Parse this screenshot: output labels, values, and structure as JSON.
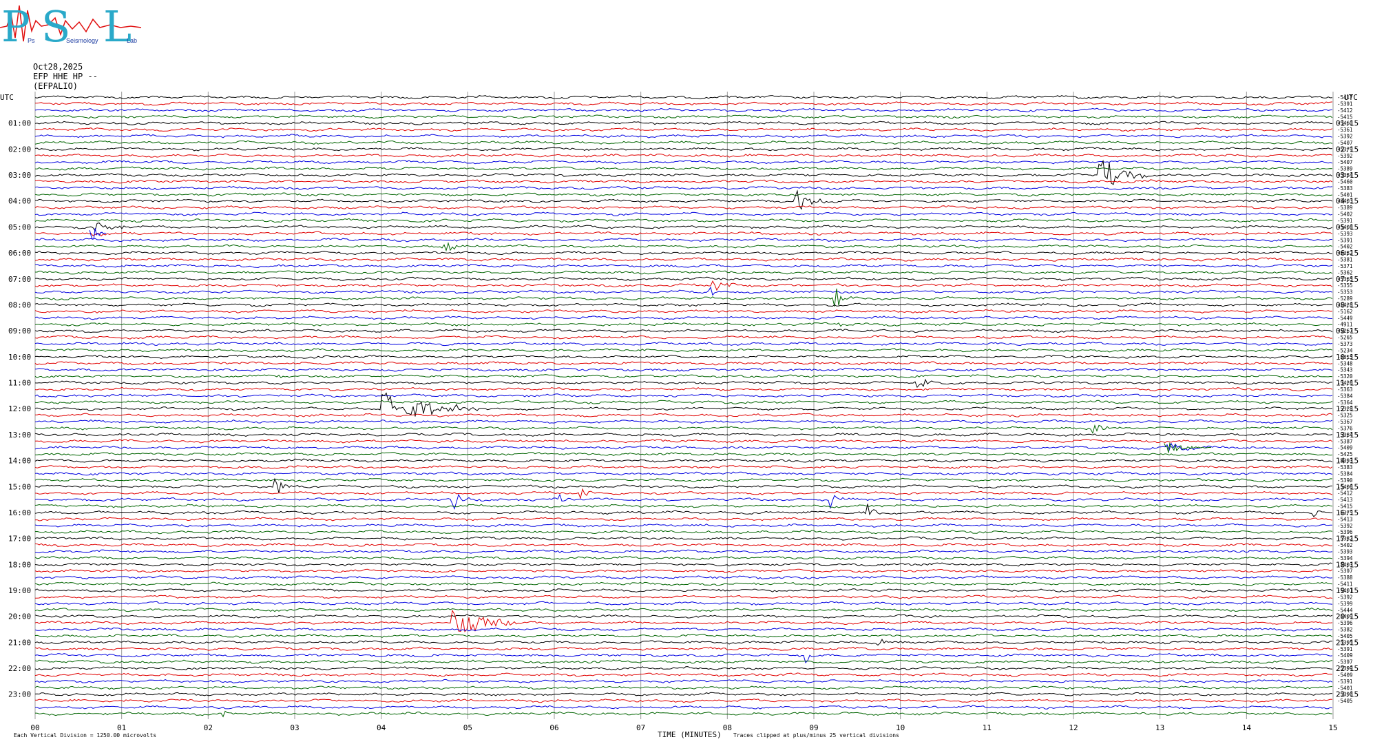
{
  "logo": {
    "big_letters": [
      "P",
      "S",
      "L"
    ],
    "small_words": [
      "Ps",
      "Seismology",
      "Lab"
    ],
    "colors": {
      "letters": "#2aa9c9",
      "wave": "#e01010",
      "small_text": "#1a3aa0"
    }
  },
  "header": {
    "date": "Oct28,2025",
    "station": "EFP HHE HP --",
    "site": "(EFPALIO)"
  },
  "axes": {
    "left_tz": "UTC",
    "right_tz": "UTC",
    "x_title": "TIME (MINUTES)",
    "x_ticks": [
      "00",
      "01",
      "02",
      "03",
      "04",
      "05",
      "06",
      "07",
      "08",
      "09",
      "10",
      "11",
      "12",
      "13",
      "14",
      "15"
    ],
    "left_hours": [
      "01:00",
      "02:00",
      "03:00",
      "04:00",
      "05:00",
      "06:00",
      "07:00",
      "08:00",
      "09:00",
      "10:00",
      "11:00",
      "12:00",
      "13:00",
      "14:00",
      "15:00",
      "16:00",
      "17:00",
      "18:00",
      "19:00",
      "20:00",
      "21:00",
      "22:00",
      "23:00"
    ],
    "right_hours": [
      "01:15",
      "02:15",
      "03:15",
      "04:15",
      "05:15",
      "06:15",
      "07:15",
      "08:15",
      "09:15",
      "10:15",
      "11:15",
      "12:15",
      "13:15",
      "14:15",
      "15:15",
      "16:15",
      "17:15",
      "18:15",
      "19:15",
      "20:15",
      "21:15",
      "22:15",
      "23:15"
    ]
  },
  "footer": {
    "scale_note": "Each Vertical Division = 1250.00 microvolts",
    "clip_note": "Traces clipped at plus/minus 25 vertical divisions"
  },
  "chart_data": {
    "type": "line",
    "title": "",
    "xlabel": "TIME (MINUTES)",
    "ylabel": "UTC",
    "xlim": [
      0,
      15
    ],
    "rows": 96,
    "minutes_per_row": 15,
    "trace_colors": [
      "#000000",
      "#e00000",
      "#0000e0",
      "#006400"
    ],
    "grid": true,
    "right_offsets": [
      "-5417",
      "-5391",
      "-5412",
      "-5415",
      "-5460",
      "-5361",
      "-5392",
      "-5407",
      "-5379",
      "-5392",
      "-5407",
      "-5389",
      "-5384",
      "-5460",
      "-5383",
      "-5401",
      "-5403",
      "-5389",
      "-5402",
      "-5391",
      "-5408",
      "-5393",
      "-5391",
      "-5402",
      "-5382",
      "-5381",
      "-5371",
      "-5362",
      "-5365",
      "-5355",
      "-5353",
      "-5289",
      "-5428",
      "-5162",
      "-5449",
      "-4911",
      "-5267",
      "-5265",
      "-5373",
      "-5234",
      "-5315",
      "-5348",
      "-5343",
      "-5320",
      "-5426",
      "-5363",
      "-5384",
      "-5364",
      "-5328",
      "-5325",
      "-5367",
      "-5376",
      "-5384",
      "-5387",
      "-5409",
      "-5425",
      "-5393",
      "-5383",
      "-5384",
      "-5390",
      "-5406",
      "-5412",
      "-5413",
      "-5415",
      "-5375",
      "-5413",
      "-5392",
      "-5396",
      "-5382",
      "-5402",
      "-5393",
      "-5394",
      "-5403",
      "-5397",
      "-5388",
      "-5411",
      "-5401",
      "-5392",
      "-5399",
      "-5444",
      "-5409",
      "-5396",
      "-5382",
      "-5405",
      "-5395",
      "-5391",
      "-5409",
      "-5397",
      "-5399",
      "-5409",
      "-5391",
      "-5401",
      "-5396",
      "-5405"
    ],
    "events": [
      {
        "row": 12,
        "minute": 12.3,
        "amp": 30,
        "dur": 0.6,
        "color": "#000000"
      },
      {
        "row": 16,
        "minute": 8.8,
        "amp": 18,
        "dur": 0.5,
        "color": "#000000"
      },
      {
        "row": 20,
        "minute": 0.7,
        "amp": 8,
        "dur": 0.6,
        "color": "#000000"
      },
      {
        "row": 21,
        "minute": 0.68,
        "amp": 10,
        "dur": 0.15,
        "color": "#0000e0"
      },
      {
        "row": 23,
        "minute": 4.75,
        "amp": 12,
        "dur": 0.2,
        "color": "#006400"
      },
      {
        "row": 29,
        "minute": 7.85,
        "amp": 8,
        "dur": 0.4,
        "color": "#e00000"
      },
      {
        "row": 30,
        "minute": 7.8,
        "amp": 10,
        "dur": 0.1,
        "color": "#0000e0"
      },
      {
        "row": 31,
        "minute": 9.25,
        "amp": 20,
        "dur": 0.2,
        "color": "#006400"
      },
      {
        "row": 35,
        "minute": 9.25,
        "amp": 10,
        "dur": 0.1,
        "color": "#006400"
      },
      {
        "row": 43,
        "minute": 2.8,
        "amp": 8,
        "dur": 0.15,
        "color": "#006400"
      },
      {
        "row": 44,
        "minute": 10.2,
        "amp": 14,
        "dur": 0.3,
        "color": "#000000"
      },
      {
        "row": 48,
        "minute": 4.0,
        "amp": 32,
        "dur": 1.2,
        "color": "#000000"
      },
      {
        "row": 51,
        "minute": 12.25,
        "amp": 12,
        "dur": 0.3,
        "color": "#006400"
      },
      {
        "row": 54,
        "minute": 13.1,
        "amp": 8,
        "dur": 0.5,
        "color": "#006400"
      },
      {
        "row": 60,
        "minute": 2.78,
        "amp": 16,
        "dur": 0.3,
        "color": "#000000"
      },
      {
        "row": 61,
        "minute": 6.3,
        "amp": 12,
        "dur": 0.2,
        "color": "#e00000"
      },
      {
        "row": 62,
        "minute": 4.85,
        "amp": 14,
        "dur": 0.2,
        "color": "#0000e0"
      },
      {
        "row": 62,
        "minute": 9.2,
        "amp": 14,
        "dur": 0.2,
        "color": "#0000e0"
      },
      {
        "row": 62,
        "minute": 6.07,
        "amp": 10,
        "dur": 0.15,
        "color": "#0000e0"
      },
      {
        "row": 64,
        "minute": 9.62,
        "amp": 14,
        "dur": 0.2,
        "color": "#000000"
      },
      {
        "row": 64,
        "minute": 14.8,
        "amp": 10,
        "dur": 0.2,
        "color": "#000000"
      },
      {
        "row": 81,
        "minute": 4.85,
        "amp": 26,
        "dur": 0.9,
        "color": "#e00000"
      },
      {
        "row": 84,
        "minute": 9.75,
        "amp": 8,
        "dur": 0.15,
        "color": "#000000"
      },
      {
        "row": 86,
        "minute": 8.92,
        "amp": 10,
        "dur": 0.15,
        "color": "#0000e0"
      },
      {
        "row": 95,
        "minute": 2.18,
        "amp": 6,
        "dur": 0.1,
        "color": "#006400"
      }
    ]
  }
}
